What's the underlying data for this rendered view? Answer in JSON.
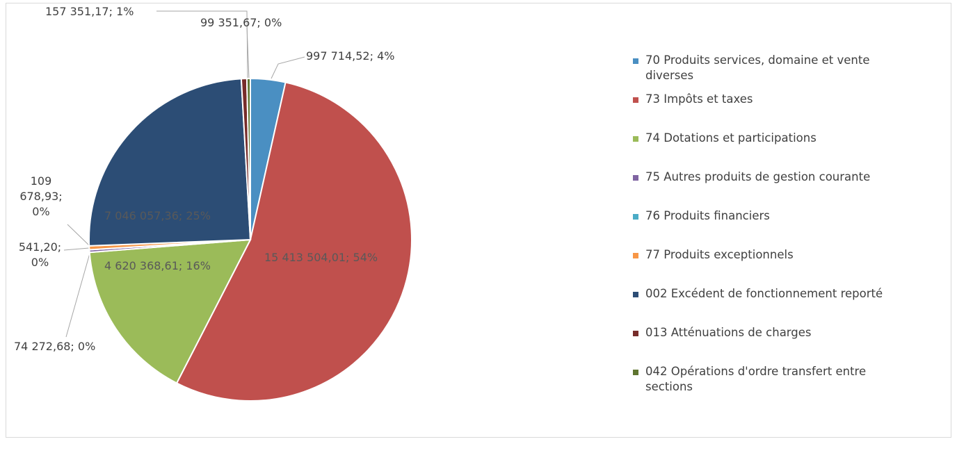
{
  "chart_data": {
    "type": "pie",
    "categories": [
      "70 Produits services, domaine et vente diverses",
      "73 Impôts et taxes",
      "74 Dotations et participations",
      "75 Autres produits de gestion courante",
      "76 Produits financiers",
      "77 Produits exceptionnels",
      "002 Excédent de fonctionnement reporté",
      "013 Atténuations de charges",
      "042 Opérations d'ordre transfert entre sections"
    ],
    "values": [
      997714.52,
      15413504.01,
      4620368.61,
      74272.68,
      541.2,
      109678.93,
      7046057.36,
      157351.17,
      99351.67
    ],
    "value_labels": [
      "997 714,52; 4%",
      "15 413 504,01; 54%",
      "4 620 368,61; 16%",
      "74 272,68; 0%",
      "541,20; 0%",
      "109 678,93; 0%",
      "7 046 057,36; 25%",
      "157 351,17; 1%",
      "99 351,67; 0%"
    ],
    "colors": [
      "#4a8fc2",
      "#c0504d",
      "#9bbb59",
      "#8064a2",
      "#4bacc6",
      "#f79646",
      "#2c4d75",
      "#772c2a",
      "#5f7530"
    ],
    "legend": "right"
  }
}
